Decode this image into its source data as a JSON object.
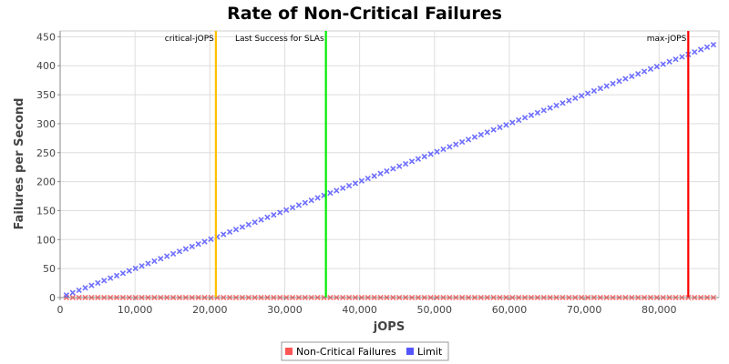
{
  "chart_data": {
    "type": "scatter",
    "title": "Rate of Non-Critical Failures",
    "xlabel": "jOPS",
    "ylabel": "Failures per Second",
    "xlim": [
      0,
      88000
    ],
    "ylim": [
      0,
      460
    ],
    "xticks": [
      0,
      10000,
      20000,
      30000,
      40000,
      50000,
      60000,
      70000,
      80000
    ],
    "xtick_labels": [
      "0",
      "10,000",
      "20,000",
      "30,000",
      "40,000",
      "50,000",
      "60,000",
      "70,000",
      "80,000"
    ],
    "yticks": [
      0,
      50,
      100,
      150,
      200,
      250,
      300,
      350,
      400,
      450
    ],
    "ytick_labels": [
      "0",
      "50",
      "100",
      "150",
      "200",
      "250",
      "300",
      "350",
      "400",
      "450"
    ],
    "grid": true,
    "legend_position": "bottom",
    "series": [
      {
        "name": "Non-Critical Failures",
        "color": "#ff5555",
        "marker": "x",
        "x_start": 839,
        "x_end": 88000,
        "x_step": 839,
        "y_constant": 0
      },
      {
        "name": "Limit",
        "color": "#5555ff",
        "marker": "x",
        "x_start": 839,
        "x_end": 88000,
        "x_step": 839,
        "y_slope": 0.005
      }
    ],
    "markers": [
      {
        "label": "critical-jOPS",
        "x": 20800,
        "color": "#ffc000",
        "label_side": "left"
      },
      {
        "label": "Last Success for SLAs",
        "x": 35500,
        "color": "#00ee00",
        "label_side": "left"
      },
      {
        "label": "max-jOPS",
        "x": 83900,
        "color": "#ff0000",
        "label_side": "left"
      }
    ]
  }
}
